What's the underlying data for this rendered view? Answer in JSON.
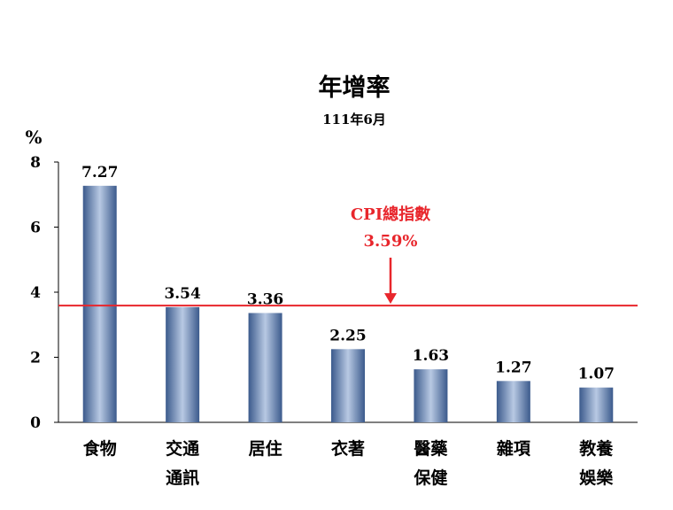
{
  "chart_data": {
    "type": "bar",
    "title": "年增率",
    "subtitle": "111年6月",
    "ylabel": "%",
    "ylim": [
      0,
      8
    ],
    "yticks": [
      0,
      2,
      4,
      6,
      8
    ],
    "categories": [
      [
        "食物"
      ],
      [
        "交通",
        "通訊"
      ],
      [
        "居住"
      ],
      [
        "衣著"
      ],
      [
        "醫藥",
        "保健"
      ],
      [
        "雜項"
      ],
      [
        "教養",
        "娛樂"
      ]
    ],
    "values": [
      7.27,
      3.54,
      3.36,
      2.25,
      1.63,
      1.27,
      1.07
    ],
    "value_labels": [
      "7.27",
      "3.54",
      "3.36",
      "2.25",
      "1.63",
      "1.27",
      "1.07"
    ],
    "reference_line": {
      "value": 3.59,
      "label": "CPI總指數",
      "value_label": "3.59%",
      "color": "#e8262c"
    },
    "bar_color_dark": "#3b5a8c",
    "bar_color_light": "#b8c9e3",
    "grid": false,
    "legend": "none"
  }
}
